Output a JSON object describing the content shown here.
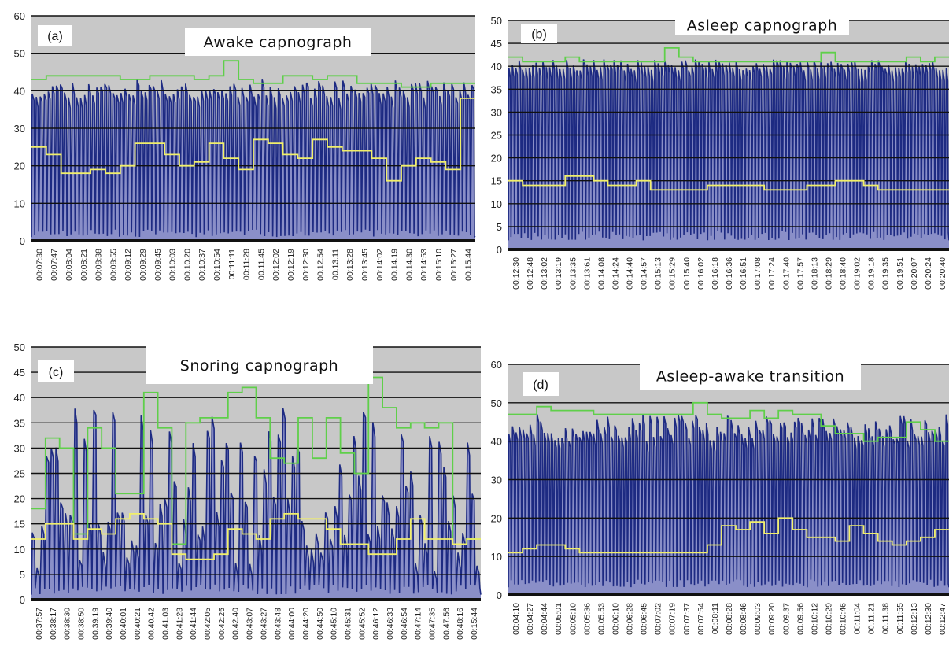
{
  "figure": {
    "colors": {
      "plot_background": "#c8c8c8",
      "gridline": "#111111",
      "capnograph_trace": "#1d2a82",
      "trace_fill": "#8a8fc8",
      "green_series": "#5fcf4a",
      "yellow_series": "#f1ef6a",
      "x_axis_bar": "#111111"
    }
  },
  "chart_data": [
    {
      "type": "line",
      "panel_label": "(a)",
      "title": "Awake capnograph",
      "ylim": [
        0,
        60
      ],
      "yticks": [
        0,
        10,
        20,
        30,
        40,
        50,
        60
      ],
      "grid": true,
      "x_tick_labels": [
        "00:07:30",
        "00:07:47",
        "00:08:04",
        "00:08:21",
        "00:08:38",
        "00:08:55",
        "00:09:12",
        "00:09:29",
        "00:09:45",
        "00:10:03",
        "00:10:20",
        "00:10:37",
        "00:10:54",
        "00:11:11",
        "00:11:28",
        "00:11:45",
        "00:12:02",
        "00:12:19",
        "00:12:30",
        "00:12:54",
        "00:13:11",
        "00:13:28",
        "00:13:45",
        "00:14:02",
        "00:14:19",
        "00:14:30",
        "00:14:53",
        "00:15:10",
        "00:15:27",
        "00:15:44"
      ],
      "trace": {
        "breaths": 110,
        "peak_min": 38,
        "peak_max": 43,
        "trough": 1,
        "seed": 11
      },
      "series": [
        {
          "color": "green",
          "values": [
            43,
            44,
            44,
            44,
            44,
            44,
            43,
            43,
            44,
            44,
            44,
            43,
            44,
            48,
            43,
            42,
            42,
            44,
            44,
            43,
            44,
            44,
            42,
            42,
            42,
            41,
            41,
            42,
            42,
            42
          ]
        },
        {
          "color": "yellow",
          "values": [
            25,
            23,
            18,
            18,
            19,
            18,
            20,
            26,
            26,
            23,
            20,
            21,
            26,
            22,
            19,
            27,
            26,
            23,
            22,
            27,
            25,
            24,
            24,
            22,
            16,
            20,
            22,
            21,
            19,
            38
          ]
        }
      ]
    },
    {
      "type": "line",
      "panel_label": "(b)",
      "title": "Asleep capnograph",
      "ylim": [
        0,
        50
      ],
      "yticks": [
        0,
        5,
        10,
        15,
        20,
        25,
        30,
        35,
        40,
        45,
        50
      ],
      "grid": true,
      "x_tick_labels": [
        "00:12:30",
        "00:12:48",
        "00:13:02",
        "00:13:19",
        "00:13:35",
        "00:13:61",
        "00:14:08",
        "00:14:24",
        "00:14:40",
        "00:14:57",
        "00:15:13",
        "00:15:29",
        "00:15:40",
        "00:16:02",
        "00:16:18",
        "00:16:36",
        "00:16:51",
        "00:17:08",
        "00:17:24",
        "00:17:40",
        "00:17:57",
        "00:18:13",
        "00:18:29",
        "00:18:40",
        "00:19:02",
        "00:19:18",
        "00:19:35",
        "00:19:51",
        "00:20:07",
        "00:20:24",
        "00:20:40"
      ],
      "trace": {
        "breaths": 130,
        "peak_min": 39,
        "peak_max": 41.5,
        "trough": 2,
        "seed": 23
      },
      "series": [
        {
          "color": "green",
          "values": [
            42,
            41,
            41,
            41,
            42,
            41,
            41,
            41,
            41,
            41,
            41,
            44,
            42,
            41,
            41,
            41,
            41,
            41,
            41,
            41,
            41,
            41,
            43,
            41,
            41,
            41,
            41,
            41,
            42,
            41,
            42
          ]
        },
        {
          "color": "yellow",
          "values": [
            15,
            14,
            14,
            14,
            16,
            16,
            15,
            14,
            14,
            15,
            13,
            13,
            13,
            13,
            14,
            14,
            14,
            14,
            13,
            13,
            13,
            14,
            14,
            15,
            15,
            14,
            13,
            13,
            13,
            13,
            13
          ]
        }
      ]
    },
    {
      "type": "line",
      "panel_label": "(c)",
      "title": "Snoring capnograph",
      "ylim": [
        0,
        50
      ],
      "yticks": [
        0,
        5,
        10,
        15,
        20,
        25,
        30,
        35,
        40,
        45,
        50
      ],
      "grid": true,
      "x_tick_labels": [
        "00:37:57",
        "00:38:17",
        "00:38:30",
        "00:38:50",
        "00:39:19",
        "00:39:40",
        "00:40:01",
        "00:40:21",
        "00:40:42",
        "00:41:03",
        "00:41:23",
        "00:41:44",
        "00:42:05",
        "00:42:25",
        "00:42:40",
        "00:43:07",
        "00:43:27",
        "00:43:48",
        "00:44:00",
        "00:44:20",
        "00:44:50",
        "00:45:10",
        "00:45:31",
        "00:45:52",
        "00:46:12",
        "00:46:33",
        "00:46:54",
        "00:47:14",
        "00:47:35",
        "00:47:56",
        "00:48:16",
        "00:15:44"
      ],
      "trace": {
        "breaths": 95,
        "peak_min": 5,
        "peak_max": 38,
        "trough": 1,
        "seed": 37
      },
      "series": [
        {
          "color": "green",
          "values": [
            18,
            32,
            30,
            13,
            34,
            30,
            21,
            21,
            41,
            34,
            11,
            35,
            36,
            36,
            41,
            42,
            36,
            28,
            27,
            36,
            28,
            36,
            29,
            25,
            44,
            38,
            34,
            35,
            34,
            35,
            11,
            12
          ]
        },
        {
          "color": "yellow",
          "values": [
            12,
            15,
            15,
            12,
            14,
            13,
            16,
            17,
            16,
            15,
            9,
            8,
            8,
            9,
            14,
            13,
            12,
            16,
            17,
            16,
            16,
            14,
            11,
            11,
            9,
            9,
            12,
            16,
            12,
            12,
            11,
            12
          ]
        }
      ]
    },
    {
      "type": "line",
      "panel_label": "(d)",
      "title": "Asleep-awake transition",
      "ylim": [
        0,
        60
      ],
      "yticks": [
        0,
        10,
        20,
        30,
        40,
        50,
        60
      ],
      "grid": true,
      "x_tick_labels": [
        "00:04:10",
        "00:04:27",
        "00:04:44",
        "00:05:01",
        "00:05:10",
        "00:05:36",
        "00:05:53",
        "00:06:10",
        "00:06:28",
        "00:06:45",
        "00:07:02",
        "00:07:19",
        "00:07:37",
        "00:07:54",
        "00:08:11",
        "00:08:28",
        "00:08:46",
        "00:09:03",
        "00:09:20",
        "00:09:37",
        "00:09:56",
        "00:10:12",
        "00:10:29",
        "00:10:46",
        "00:11:04",
        "00:11:21",
        "00:11:38",
        "00:11:55",
        "00:12:13",
        "00:12:30",
        "00:12:47"
      ],
      "trace": {
        "breaths": 125,
        "peak_min": 40,
        "peak_max": 47,
        "trough": 2,
        "seed": 51
      },
      "series": [
        {
          "color": "green",
          "values": [
            47,
            47,
            49,
            48,
            48,
            48,
            47,
            47,
            47,
            47,
            47,
            47,
            47,
            50,
            47,
            46,
            46,
            48,
            46,
            48,
            47,
            47,
            44,
            42,
            42,
            40,
            41,
            41,
            45,
            43,
            40
          ]
        },
        {
          "color": "yellow",
          "values": [
            11,
            12,
            13,
            13,
            12,
            11,
            11,
            11,
            11,
            11,
            11,
            11,
            11,
            11,
            13,
            18,
            17,
            19,
            16,
            20,
            17,
            15,
            15,
            14,
            18,
            16,
            14,
            13,
            14,
            15,
            17
          ]
        }
      ]
    }
  ]
}
